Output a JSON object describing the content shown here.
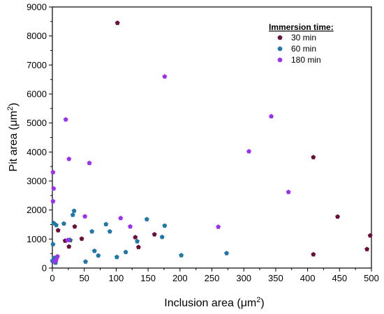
{
  "chart_data": {
    "type": "scatter",
    "title": "",
    "xlabel": {
      "main": "Inclusion area (μm",
      "sup": "2",
      "end": ")"
    },
    "ylabel": {
      "main": "Pit area (μm",
      "sup": "2",
      "end": ")"
    },
    "xlim": [
      0,
      500
    ],
    "ylim": [
      0,
      9000
    ],
    "x_ticks": [
      0,
      50,
      100,
      150,
      200,
      250,
      300,
      350,
      400,
      450,
      500
    ],
    "y_ticks": [
      0,
      1000,
      2000,
      3000,
      4000,
      5000,
      6000,
      7000,
      8000,
      9000
    ],
    "grid": false,
    "legend": {
      "title": "Immersion time:",
      "placement": "top-right"
    },
    "series": [
      {
        "name": "30 min",
        "color": "#6b0f3a",
        "marker": "pentagon",
        "points": [
          [
            102,
            8450
          ],
          [
            409,
            3820
          ],
          [
            447,
            1770
          ],
          [
            498,
            1120
          ],
          [
            493,
            650
          ],
          [
            409,
            470
          ],
          [
            160,
            1160
          ],
          [
            130,
            1060
          ],
          [
            135,
            720
          ],
          [
            46,
            1010
          ],
          [
            35,
            1430
          ],
          [
            9,
            1300
          ],
          [
            20,
            940
          ],
          [
            26,
            740
          ],
          [
            28,
            960
          ]
        ]
      },
      {
        "name": "60 min",
        "color": "#1f77a8",
        "marker": "pentagon",
        "points": [
          [
            2,
            1550
          ],
          [
            6,
            1480
          ],
          [
            1,
            820
          ],
          [
            0,
            250
          ],
          [
            3,
            350
          ],
          [
            5,
            180
          ],
          [
            18,
            1530
          ],
          [
            27,
            970
          ],
          [
            32,
            1830
          ],
          [
            34,
            1970
          ],
          [
            52,
            220
          ],
          [
            62,
            1260
          ],
          [
            66,
            590
          ],
          [
            72,
            430
          ],
          [
            84,
            1510
          ],
          [
            90,
            1260
          ],
          [
            101,
            380
          ],
          [
            115,
            550
          ],
          [
            133,
            920
          ],
          [
            148,
            1680
          ],
          [
            172,
            1070
          ],
          [
            176,
            1460
          ],
          [
            202,
            440
          ],
          [
            273,
            510
          ]
        ]
      },
      {
        "name": "180 min",
        "color": "#9b30f0",
        "marker": "pentagon",
        "points": [
          [
            176,
            6600
          ],
          [
            21,
            5120
          ],
          [
            343,
            5230
          ],
          [
            308,
            4020
          ],
          [
            26,
            3760
          ],
          [
            58,
            3620
          ],
          [
            1,
            3300
          ],
          [
            2,
            2740
          ],
          [
            1,
            2300
          ],
          [
            370,
            2620
          ],
          [
            260,
            1420
          ],
          [
            107,
            1720
          ],
          [
            122,
            1430
          ],
          [
            51,
            1780
          ],
          [
            24,
            960
          ],
          [
            8,
            400
          ],
          [
            6,
            290
          ],
          [
            3,
            220
          ]
        ]
      }
    ]
  }
}
